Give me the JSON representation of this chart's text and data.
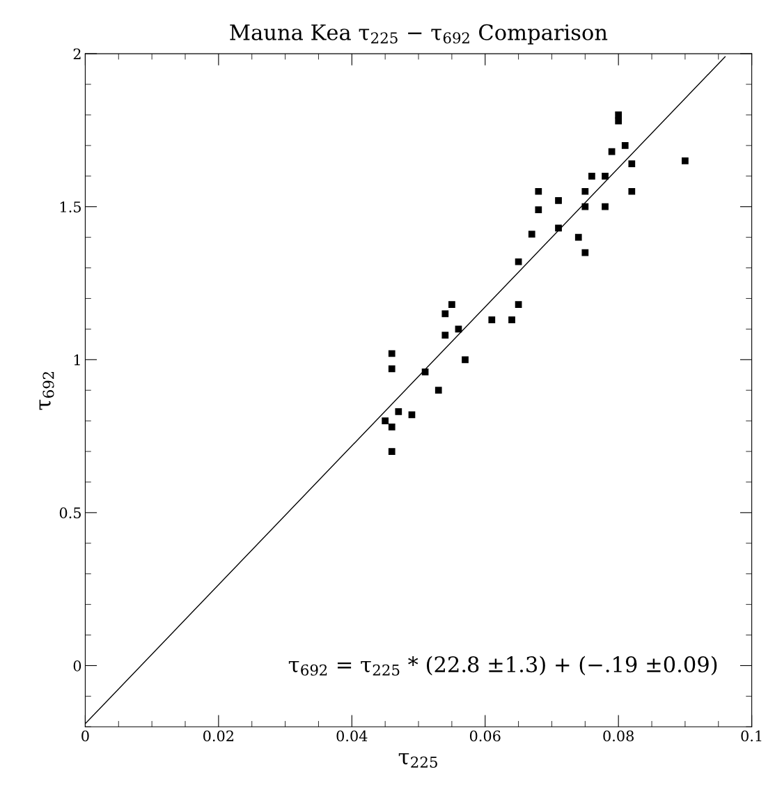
{
  "chart_data": {
    "type": "scatter",
    "title": "Mauna Kea τ$_{225}$ − τ$_{692}$ Comparison",
    "xlabel": "τ$_{225}$",
    "ylabel": "τ$_{692}$",
    "xlim": [
      0,
      0.1
    ],
    "xticks": [
      0,
      0.02,
      0.04,
      0.06,
      0.08,
      0.1
    ],
    "ylim": [
      -0.2,
      2
    ],
    "yticks": [
      0,
      0.5,
      1,
      1.5,
      2
    ],
    "grid": false,
    "marker": "square",
    "annotations": [
      "τ$_{692}$ = τ$_{225}$ * (22.8 ±1.3) + (−.19 ±0.09)"
    ],
    "series": [
      {
        "color": "#000000",
        "x": [
          0.045,
          0.046,
          0.046,
          0.046,
          0.046,
          0.047,
          0.049,
          0.051,
          0.053,
          0.054,
          0.054,
          0.055,
          0.056,
          0.057,
          0.061,
          0.064,
          0.065,
          0.065,
          0.067,
          0.068,
          0.068,
          0.071,
          0.071,
          0.074,
          0.075,
          0.075,
          0.075,
          0.076,
          0.078,
          0.078,
          0.079,
          0.08,
          0.08,
          0.081,
          0.082,
          0.082,
          0.09
        ],
        "values": [
          0.8,
          0.78,
          0.7,
          1.02,
          0.97,
          0.83,
          0.82,
          0.96,
          0.9,
          1.08,
          1.15,
          1.18,
          1.1,
          1.0,
          1.13,
          1.13,
          1.18,
          1.32,
          1.41,
          1.49,
          1.55,
          1.52,
          1.43,
          1.4,
          1.35,
          1.5,
          1.55,
          1.6,
          1.6,
          1.5,
          1.68,
          1.78,
          1.8,
          1.7,
          1.64,
          1.55,
          1.65
        ]
      },
      {
        "type": "line",
        "color": "#000000",
        "marker": "none",
        "line_style": "solid",
        "x": [
          0,
          0.096
        ],
        "values": [
          -0.19,
          1.99
        ]
      }
    ]
  }
}
